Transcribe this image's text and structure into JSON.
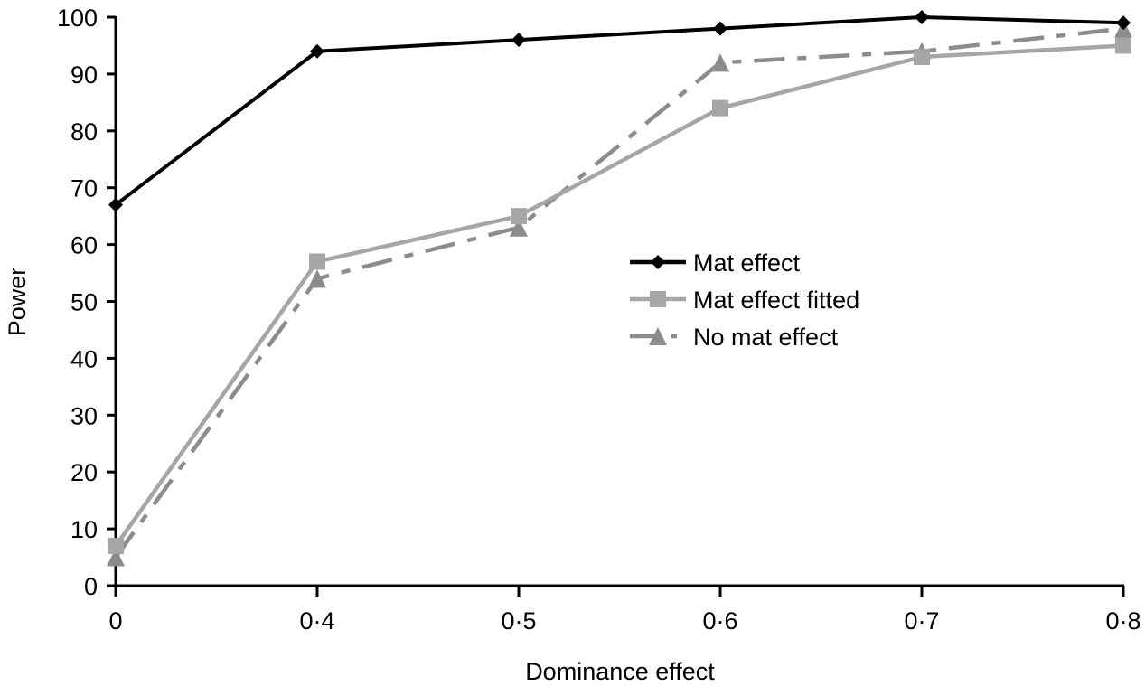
{
  "chart_data": {
    "type": "line",
    "title": "",
    "xlabel": "Dominance effect",
    "ylabel": "Power",
    "categories": [
      "0",
      "0·4",
      "0·5",
      "0·6",
      "0·7",
      "0·8"
    ],
    "ylim": [
      0,
      100
    ],
    "yticks": [
      0,
      10,
      20,
      30,
      40,
      50,
      60,
      70,
      80,
      90,
      100
    ],
    "grid": false,
    "legend_position": "center-right",
    "series": [
      {
        "name": "Mat effect",
        "values": [
          67,
          94,
          96,
          98,
          100,
          99
        ],
        "color": "#000000",
        "marker": "diamond",
        "line_style": "solid"
      },
      {
        "name": "Mat effect fitted",
        "values": [
          7,
          57,
          65,
          84,
          93,
          95
        ],
        "color": "#a6a6a6",
        "marker": "square",
        "line_style": "solid"
      },
      {
        "name": "No mat effect",
        "values": [
          5,
          54,
          63,
          92,
          94,
          98
        ],
        "color": "#8c8c8c",
        "marker": "triangle",
        "line_style": "dash-dot"
      }
    ]
  }
}
